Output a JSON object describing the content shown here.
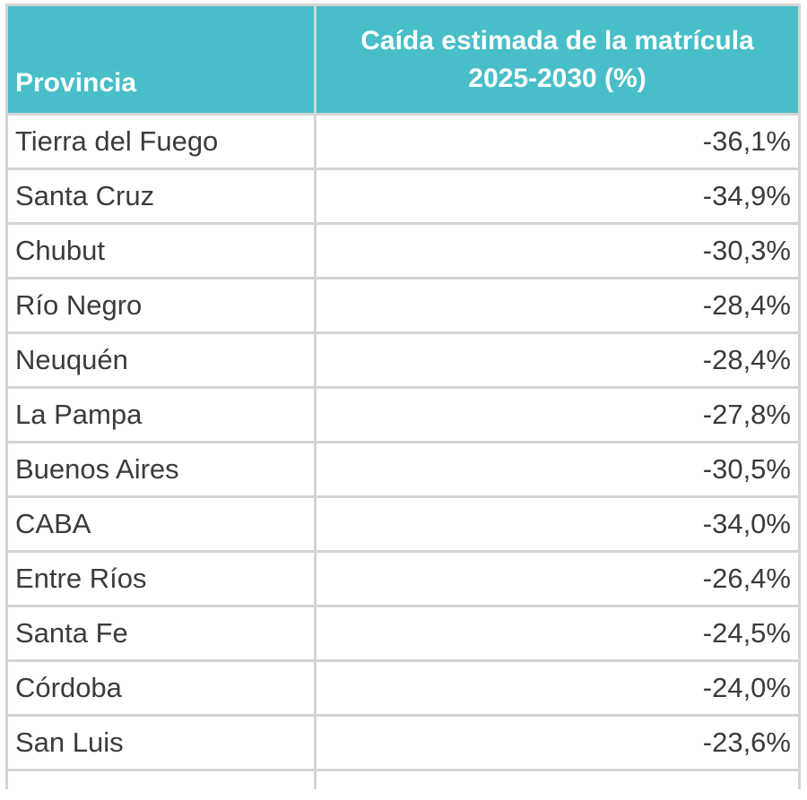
{
  "table": {
    "headers": {
      "province": "Provincia",
      "drop": "Caída estimada de la matrícula 2025-2030 (%)"
    },
    "rows": [
      {
        "province": "Tierra del Fuego",
        "value": "-36,1%"
      },
      {
        "province": "Santa Cruz",
        "value": "-34,9%"
      },
      {
        "province": "Chubut",
        "value": "-30,3%"
      },
      {
        "province": "Río Negro",
        "value": "-28,4%"
      },
      {
        "province": "Neuquén",
        "value": "-28,4%"
      },
      {
        "province": "La Pampa",
        "value": "-27,8%"
      },
      {
        "province": "Buenos Aires",
        "value": "-30,5%"
      },
      {
        "province": "CABA",
        "value": "-34,0%"
      },
      {
        "province": "Entre Ríos",
        "value": "-26,4%"
      },
      {
        "province": "Santa Fe",
        "value": "-24,5%"
      },
      {
        "province": "Córdoba",
        "value": "-24,0%"
      },
      {
        "province": "San Luis",
        "value": "-23,6%"
      }
    ],
    "colors": {
      "header_bg": "#47bec8",
      "header_text": "#ffffff",
      "border": "#d4d4d4",
      "cell_text": "#3b3b3b"
    }
  }
}
